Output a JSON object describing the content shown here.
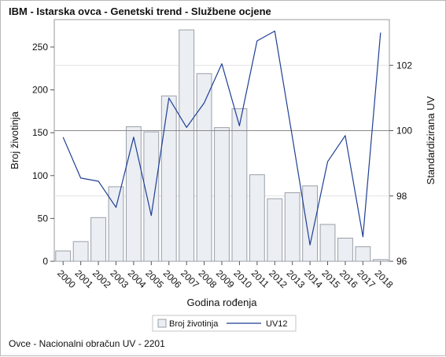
{
  "title": "IBM - Istarska ovca - Genetski trend - Službene ocjene",
  "footer": "Ovce - Nacionalni obračun UV - 2201",
  "chart_data": {
    "type": "bar",
    "title": "IBM - Istarska ovca - Genetski trend - Službene ocjene",
    "xlabel": "Godina rođenja",
    "ylabel": "Broj životinja",
    "y2label": "Standardizirana UV",
    "categories": [
      "2000",
      "2001",
      "2002",
      "2003",
      "2004",
      "2005",
      "2006",
      "2007",
      "2008",
      "2009",
      "2010",
      "2011",
      "2012",
      "2013",
      "2014",
      "2015",
      "2016",
      "2017",
      "2018"
    ],
    "ylim": [
      0,
      282
    ],
    "y_ticks": [
      0,
      50,
      100,
      150,
      200,
      250
    ],
    "y2lim": [
      96,
      103.4
    ],
    "y2_ticks": [
      96,
      98,
      100,
      102
    ],
    "reference_line_y2": 100,
    "grid": "horizontal reference lines",
    "legend_position": "bottom",
    "series": [
      {
        "name": "Broj životinja",
        "type": "bar",
        "axis": "left",
        "color": "#ebeef3",
        "edge_color": "#9aa0a8",
        "values": [
          12,
          23,
          51,
          87,
          157,
          151,
          193,
          270,
          219,
          156,
          178,
          101,
          73,
          80,
          88,
          43,
          27,
          17,
          2
        ]
      },
      {
        "name": "UV12",
        "type": "line",
        "axis": "right",
        "color": "#1f3f94",
        "values": [
          99.8,
          98.55,
          98.45,
          97.65,
          99.8,
          97.4,
          101,
          100.1,
          100.85,
          102.05,
          100.15,
          102.75,
          103.05,
          99.8,
          96.5,
          99.05,
          99.85,
          96.75,
          103
        ]
      }
    ]
  }
}
